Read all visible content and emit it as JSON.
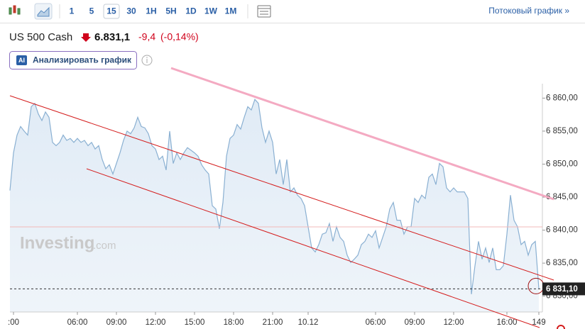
{
  "toolbar": {
    "intervals": [
      "1",
      "5",
      "15",
      "30",
      "1H",
      "5H",
      "1D",
      "1W",
      "1M"
    ],
    "active": 2,
    "stream_link": "Потоковый график »"
  },
  "quote": {
    "name": "US 500 Cash",
    "price": "6.831,1",
    "change": "-9,4",
    "change_pct": "(-0,14%)"
  },
  "analyze_button": {
    "icon": "AI",
    "label": "Анализировать график"
  },
  "watermark": {
    "brand": "Investing",
    "domain": ".com"
  },
  "chart_data": {
    "type": "area",
    "color": "#8ab0d2",
    "values": [
      6846.0,
      6851.7,
      6854.4,
      6855.7,
      6855.0,
      6854.4,
      6858.7,
      6859.2,
      6857.6,
      6856.6,
      6857.9,
      6857.1,
      6853.3,
      6852.8,
      6853.3,
      6854.4,
      6853.6,
      6853.9,
      6853.3,
      6853.9,
      6853.3,
      6853.6,
      6852.8,
      6853.3,
      6852.3,
      6852.8,
      6850.7,
      6849.3,
      6849.9,
      6848.5,
      6850.1,
      6851.7,
      6853.6,
      6855.0,
      6854.6,
      6855.5,
      6857.1,
      6855.7,
      6855.5,
      6854.6,
      6852.8,
      6852.3,
      6850.7,
      6851.2,
      6849.1,
      6855.0,
      6850.1,
      6851.7,
      6850.7,
      6851.7,
      6852.5,
      6852.1,
      6851.7,
      6851.2,
      6849.9,
      6849.1,
      6848.5,
      6843.7,
      6843.2,
      6840.2,
      6844.2,
      6851.2,
      6853.9,
      6854.4,
      6856.0,
      6855.3,
      6857.1,
      6858.7,
      6858.2,
      6859.8,
      6859.2,
      6855.5,
      6853.3,
      6855.0,
      6853.3,
      6848.5,
      6850.7,
      6846.9,
      6850.7,
      6845.8,
      6846.4,
      6845.3,
      6844.8,
      6843.7,
      6840.5,
      6837.3,
      6836.7,
      6837.8,
      6839.4,
      6839.6,
      6841.0,
      6838.3,
      6840.5,
      6838.9,
      6838.3,
      6836.2,
      6835.1,
      6835.6,
      6836.2,
      6837.8,
      6838.3,
      6839.4,
      6838.9,
      6839.9,
      6837.3,
      6838.9,
      6840.5,
      6843.2,
      6844.2,
      6841.5,
      6841.5,
      6839.4,
      6840.5,
      6840.5,
      6844.8,
      6844.2,
      6845.3,
      6844.8,
      6848.0,
      6848.5,
      6846.9,
      6850.1,
      6849.6,
      6846.4,
      6845.8,
      6846.4,
      6845.8,
      6845.8,
      6845.8,
      6844.8,
      6830.3,
      6834.6,
      6838.3,
      6835.6,
      6837.3,
      6835.1,
      6837.3,
      6834.0,
      6834.0,
      6834.6,
      6839.4,
      6845.3,
      6841.5,
      6840.5,
      6837.8,
      6838.3,
      6836.2,
      6837.8,
      6838.3,
      6831.1
    ],
    "last_value_label": "6 831,10",
    "xlim": [
      0,
      150
    ],
    "xticks": [
      {
        "value": 1,
        "label": ":00"
      },
      {
        "value": 19,
        "label": "06:00"
      },
      {
        "value": 30,
        "label": "09:00"
      },
      {
        "value": 41,
        "label": "12:00"
      },
      {
        "value": 52,
        "label": "15:00"
      },
      {
        "value": 63,
        "label": "18:00"
      },
      {
        "value": 74,
        "label": "21:00"
      },
      {
        "value": 84,
        "label": "10.12"
      },
      {
        "value": 103,
        "label": "06:00"
      },
      {
        "value": 114,
        "label": "09:00"
      },
      {
        "value": 125,
        "label": "12:00"
      },
      {
        "value": 140,
        "label": "16:00"
      },
      149
    ],
    "ylim": [
      6827.6,
      6860.9
    ],
    "yticks": [
      {
        "value": 6830,
        "label": "6 830,00"
      },
      {
        "value": 6835,
        "label": "6 835,00"
      },
      {
        "value": 6840,
        "label": "6 840,00"
      },
      {
        "value": 6845,
        "label": "6 845,00"
      },
      {
        "value": 6850,
        "label": "6 850,00"
      },
      {
        "value": 6855,
        "label": "6 855,00"
      },
      {
        "value": 6860,
        "label": "6 860,00"
      }
    ]
  }
}
